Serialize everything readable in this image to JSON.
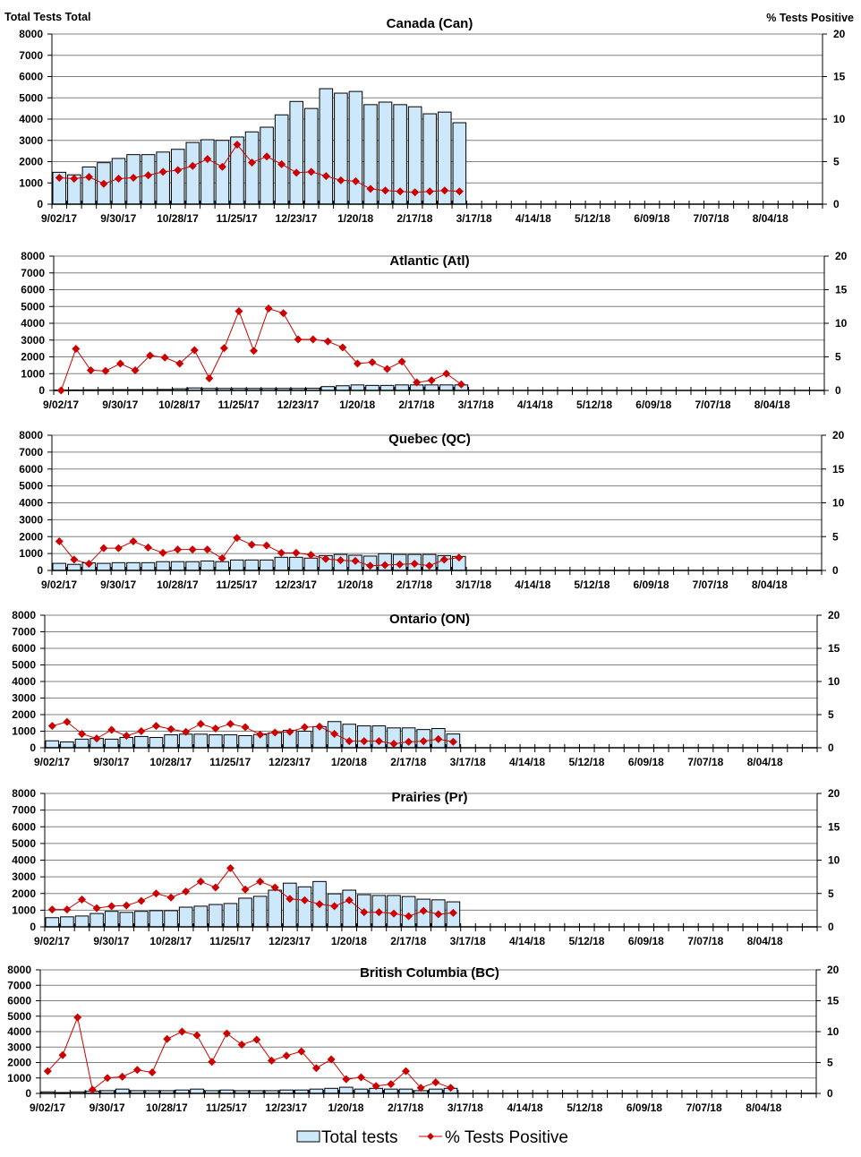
{
  "chart_data": {
    "type": "bar+line",
    "left_axis_title": "Total Tests Total",
    "right_axis_title": "% Tests Positive",
    "left_ylim": [
      0,
      8000
    ],
    "left_ticks": [
      "0",
      "1000",
      "2000",
      "3000",
      "4000",
      "5000",
      "6000",
      "7000",
      "8000"
    ],
    "right_ylim": [
      0,
      20
    ],
    "right_ticks": [
      "0",
      "5",
      "10",
      "15",
      "20"
    ],
    "x_tick_labels": [
      "9/02/17",
      "9/30/17",
      "10/28/17",
      "11/25/17",
      "12/23/17",
      "1/20/18",
      "2/17/18",
      "3/17/18",
      "4/14/18",
      "5/12/18",
      "6/09/18",
      "7/07/18",
      "8/04/18"
    ],
    "weeks_on_axis": 52,
    "grid": true,
    "legend": {
      "position": "bottom",
      "bar_label": "Total tests",
      "line_label": "% Tests Positive"
    },
    "colors": {
      "bar_fill": "#cce8fa",
      "bar_edge": "#000000",
      "line": "#cc0000",
      "grid": "#808080"
    },
    "panels": [
      {
        "title": "Canada (Can)",
        "total_tests": [
          1500,
          1380,
          1750,
          1950,
          2150,
          2330,
          2330,
          2450,
          2580,
          2900,
          3030,
          3000,
          3160,
          3400,
          3620,
          4200,
          4830,
          4500,
          5430,
          5220,
          5300,
          4680,
          4800,
          4680,
          4580,
          4250,
          4330,
          3830
        ],
        "pct_positive": [
          3.1,
          3.0,
          3.2,
          2.4,
          3.0,
          3.1,
          3.4,
          3.8,
          4.0,
          4.5,
          5.3,
          4.4,
          7.0,
          4.9,
          5.6,
          4.7,
          3.7,
          3.8,
          3.3,
          2.8,
          2.7,
          1.8,
          1.6,
          1.5,
          1.4,
          1.5,
          1.6,
          1.5
        ]
      },
      {
        "title": "Atlantic (Atl)",
        "total_tests": [
          20,
          30,
          40,
          50,
          50,
          50,
          50,
          60,
          100,
          150,
          120,
          120,
          120,
          120,
          120,
          120,
          120,
          130,
          230,
          280,
          330,
          300,
          300,
          330,
          330,
          330,
          330,
          330
        ],
        "pct_positive": [
          0,
          6.2,
          3.0,
          2.9,
          4.0,
          3.0,
          5.2,
          4.9,
          4.0,
          6.0,
          1.8,
          6.3,
          11.8,
          5.9,
          12.2,
          11.5,
          7.6,
          7.6,
          7.3,
          6.4,
          4.0,
          4.2,
          3.2,
          4.3,
          1.2,
          1.5,
          2.5,
          0.9
        ]
      },
      {
        "title": "Quebec (QC)",
        "total_tests": [
          420,
          360,
          450,
          420,
          460,
          460,
          460,
          520,
          520,
          520,
          560,
          520,
          620,
          620,
          620,
          780,
          780,
          730,
          880,
          950,
          900,
          850,
          990,
          950,
          950,
          950,
          880,
          830
        ],
        "pct_positive": [
          4.3,
          1.6,
          1.0,
          3.3,
          3.3,
          4.3,
          3.4,
          2.6,
          3.1,
          3.1,
          3.1,
          1.8,
          4.8,
          3.8,
          3.7,
          2.6,
          2.6,
          2.3,
          1.7,
          1.5,
          1.4,
          0.7,
          0.8,
          0.9,
          1.0,
          0.7,
          1.6,
          1.9
        ]
      },
      {
        "title": "Ontario (ON)",
        "total_tests": [
          420,
          350,
          520,
          560,
          520,
          620,
          680,
          620,
          780,
          820,
          820,
          780,
          780,
          730,
          800,
          900,
          1050,
          1000,
          1280,
          1580,
          1420,
          1320,
          1320,
          1200,
          1200,
          1100,
          1160,
          830
        ],
        "pct_positive": [
          3.3,
          3.9,
          2.1,
          1.4,
          2.7,
          1.8,
          2.5,
          3.3,
          2.8,
          2.4,
          3.6,
          2.9,
          3.6,
          3.1,
          2.0,
          2.3,
          2.4,
          3.1,
          3.2,
          2.1,
          1.0,
          1.0,
          1.0,
          0.6,
          0.9,
          1.0,
          1.3,
          0.9
        ]
      },
      {
        "title": "Prairies (Pr)",
        "total_tests": [
          550,
          600,
          650,
          800,
          930,
          870,
          930,
          970,
          970,
          1180,
          1240,
          1340,
          1400,
          1720,
          1830,
          2200,
          2620,
          2400,
          2720,
          1980,
          2200,
          1930,
          1880,
          1880,
          1820,
          1660,
          1620,
          1500
        ],
        "pct_positive": [
          2.6,
          2.6,
          4.1,
          2.8,
          3.1,
          3.2,
          3.9,
          5.0,
          4.4,
          5.3,
          6.8,
          5.9,
          8.8,
          5.6,
          6.8,
          5.9,
          4.2,
          4.0,
          3.4,
          3.1,
          4.0,
          2.2,
          2.2,
          2.0,
          1.6,
          2.4,
          1.9,
          2.1
        ]
      },
      {
        "title": "British Columbia (BC)",
        "total_tests": [
          100,
          60,
          100,
          150,
          180,
          280,
          180,
          180,
          180,
          220,
          280,
          180,
          220,
          180,
          180,
          180,
          220,
          220,
          280,
          330,
          400,
          280,
          330,
          280,
          280,
          180,
          280,
          330
        ],
        "pct_positive": [
          3.6,
          6.2,
          12.3,
          0.6,
          2.5,
          2.7,
          3.8,
          3.4,
          8.8,
          10.0,
          9.4,
          5.1,
          9.7,
          7.9,
          8.7,
          5.3,
          6.1,
          6.8,
          4.1,
          5.5,
          2.3,
          2.6,
          1.2,
          1.5,
          3.6,
          0.9,
          1.8,
          0.9
        ]
      }
    ]
  }
}
